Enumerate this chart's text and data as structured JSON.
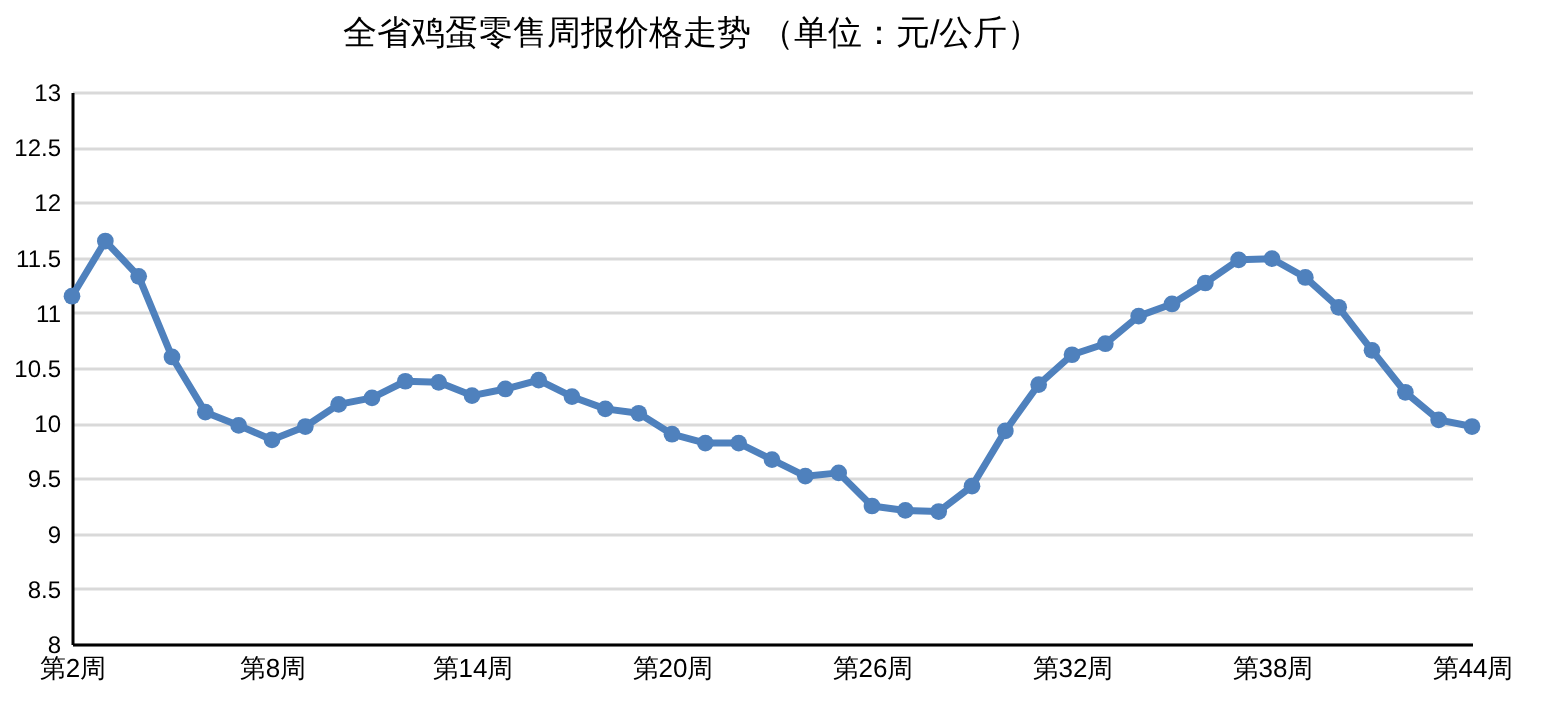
{
  "chart_data": {
    "type": "line",
    "title": "全省鸡蛋零售周报价格走势    （单位：元/公斤）",
    "categories": [
      "第2周",
      null,
      null,
      null,
      null,
      null,
      "第8周",
      null,
      null,
      null,
      null,
      null,
      "第14周",
      null,
      null,
      null,
      null,
      null,
      "第20周",
      null,
      null,
      null,
      null,
      null,
      "第26周",
      null,
      null,
      null,
      null,
      null,
      "第32周",
      null,
      null,
      null,
      null,
      null,
      "第38周",
      null,
      null,
      null,
      null,
      null,
      "第44周"
    ],
    "series": [
      {
        "color": "#4f81bd",
        "values": [
          11.15,
          11.65,
          11.33,
          10.6,
          10.1,
          9.98,
          9.85,
          9.97,
          10.17,
          10.23,
          10.38,
          10.37,
          10.25,
          10.31,
          10.39,
          10.24,
          10.13,
          10.09,
          9.9,
          9.82,
          9.82,
          9.67,
          9.52,
          9.55,
          9.25,
          9.21,
          9.2,
          9.43,
          9.93,
          10.35,
          10.62,
          10.72,
          10.97,
          11.08,
          11.27,
          11.48,
          11.49,
          11.32,
          11.05,
          10.66,
          10.28,
          10.03,
          9.97
        ]
      }
    ],
    "ylim": [
      8,
      13
    ],
    "yticks": [
      8,
      8.5,
      9,
      9.5,
      10,
      10.5,
      11,
      11.5,
      12,
      12.5,
      13
    ],
    "grid": "y",
    "marker": "circle",
    "line_style": "solid",
    "legend": false
  }
}
